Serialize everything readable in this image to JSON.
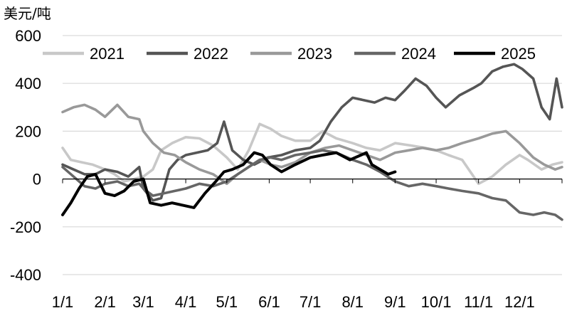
{
  "chart_data": {
    "type": "line",
    "unit_label": "美元/吨",
    "ylim": [
      -400,
      600
    ],
    "y_ticks": [
      600,
      400,
      200,
      0,
      -200,
      -400
    ],
    "x_tick_labels": [
      "1/1",
      "2/1",
      "3/1",
      "4/1",
      "5/1",
      "6/1",
      "7/1",
      "8/1",
      "9/1",
      "10/1",
      "11/1",
      "12/1"
    ],
    "x_domain_days": [
      0,
      365
    ],
    "legend_position": "top",
    "grid": "horizontal",
    "series": [
      {
        "name": "2021",
        "color": "#c8c8c8",
        "points": [
          [
            0,
            130
          ],
          [
            6,
            80
          ],
          [
            14,
            70
          ],
          [
            22,
            60
          ],
          [
            31,
            40
          ],
          [
            38,
            20
          ],
          [
            45,
            -10
          ],
          [
            52,
            0
          ],
          [
            59,
            10
          ],
          [
            66,
            40
          ],
          [
            72,
            120
          ],
          [
            80,
            150
          ],
          [
            90,
            175
          ],
          [
            100,
            170
          ],
          [
            110,
            140
          ],
          [
            120,
            90
          ],
          [
            128,
            40
          ],
          [
            136,
            120
          ],
          [
            144,
            230
          ],
          [
            152,
            210
          ],
          [
            160,
            180
          ],
          [
            170,
            160
          ],
          [
            181,
            160
          ],
          [
            190,
            200
          ],
          [
            200,
            170
          ],
          [
            212,
            150
          ],
          [
            222,
            130
          ],
          [
            232,
            120
          ],
          [
            243,
            150
          ],
          [
            255,
            140
          ],
          [
            265,
            130
          ],
          [
            273,
            120
          ],
          [
            282,
            100
          ],
          [
            292,
            80
          ],
          [
            304,
            -20
          ],
          [
            314,
            10
          ],
          [
            324,
            60
          ],
          [
            334,
            100
          ],
          [
            340,
            80
          ],
          [
            350,
            40
          ],
          [
            358,
            60
          ],
          [
            365,
            70
          ]
        ]
      },
      {
        "name": "2022",
        "color": "#555555",
        "points": [
          [
            0,
            60
          ],
          [
            8,
            40
          ],
          [
            16,
            20
          ],
          [
            24,
            20
          ],
          [
            31,
            40
          ],
          [
            40,
            30
          ],
          [
            48,
            10
          ],
          [
            56,
            50
          ],
          [
            59,
            -40
          ],
          [
            66,
            -90
          ],
          [
            72,
            -80
          ],
          [
            78,
            40
          ],
          [
            84,
            80
          ],
          [
            90,
            100
          ],
          [
            98,
            110
          ],
          [
            106,
            120
          ],
          [
            113,
            150
          ],
          [
            118,
            240
          ],
          [
            124,
            120
          ],
          [
            132,
            80
          ],
          [
            140,
            60
          ],
          [
            150,
            90
          ],
          [
            160,
            100
          ],
          [
            170,
            120
          ],
          [
            181,
            130
          ],
          [
            188,
            160
          ],
          [
            196,
            240
          ],
          [
            204,
            300
          ],
          [
            212,
            340
          ],
          [
            220,
            330
          ],
          [
            228,
            320
          ],
          [
            236,
            340
          ],
          [
            243,
            330
          ],
          [
            250,
            370
          ],
          [
            258,
            420
          ],
          [
            266,
            390
          ],
          [
            273,
            340
          ],
          [
            280,
            300
          ],
          [
            290,
            350
          ],
          [
            300,
            380
          ],
          [
            306,
            400
          ],
          [
            314,
            450
          ],
          [
            322,
            470
          ],
          [
            330,
            480
          ],
          [
            336,
            460
          ],
          [
            344,
            420
          ],
          [
            350,
            300
          ],
          [
            356,
            250
          ],
          [
            361,
            420
          ],
          [
            365,
            300
          ]
        ]
      },
      {
        "name": "2023",
        "color": "#999999",
        "points": [
          [
            0,
            280
          ],
          [
            8,
            300
          ],
          [
            16,
            310
          ],
          [
            24,
            290
          ],
          [
            31,
            260
          ],
          [
            40,
            310
          ],
          [
            48,
            260
          ],
          [
            56,
            250
          ],
          [
            59,
            200
          ],
          [
            66,
            150
          ],
          [
            74,
            110
          ],
          [
            82,
            100
          ],
          [
            90,
            70
          ],
          [
            100,
            40
          ],
          [
            110,
            20
          ],
          [
            120,
            -20
          ],
          [
            128,
            20
          ],
          [
            136,
            50
          ],
          [
            144,
            80
          ],
          [
            152,
            60
          ],
          [
            160,
            50
          ],
          [
            170,
            70
          ],
          [
            181,
            110
          ],
          [
            192,
            130
          ],
          [
            202,
            140
          ],
          [
            212,
            120
          ],
          [
            222,
            100
          ],
          [
            232,
            80
          ],
          [
            243,
            110
          ],
          [
            253,
            120
          ],
          [
            263,
            130
          ],
          [
            273,
            120
          ],
          [
            282,
            130
          ],
          [
            292,
            150
          ],
          [
            304,
            170
          ],
          [
            314,
            190
          ],
          [
            324,
            200
          ],
          [
            334,
            150
          ],
          [
            344,
            90
          ],
          [
            352,
            60
          ],
          [
            360,
            40
          ],
          [
            365,
            50
          ]
        ]
      },
      {
        "name": "2024",
        "color": "#666666",
        "points": [
          [
            0,
            50
          ],
          [
            8,
            10
          ],
          [
            16,
            -30
          ],
          [
            24,
            -40
          ],
          [
            31,
            -20
          ],
          [
            40,
            -10
          ],
          [
            48,
            -30
          ],
          [
            56,
            -20
          ],
          [
            59,
            -40
          ],
          [
            66,
            -70
          ],
          [
            74,
            -60
          ],
          [
            82,
            -50
          ],
          [
            90,
            -40
          ],
          [
            100,
            -20
          ],
          [
            110,
            -30
          ],
          [
            120,
            -10
          ],
          [
            128,
            20
          ],
          [
            136,
            50
          ],
          [
            144,
            80
          ],
          [
            152,
            90
          ],
          [
            160,
            80
          ],
          [
            170,
            100
          ],
          [
            181,
            110
          ],
          [
            190,
            120
          ],
          [
            200,
            110
          ],
          [
            212,
            80
          ],
          [
            222,
            60
          ],
          [
            232,
            30
          ],
          [
            243,
            -10
          ],
          [
            253,
            -30
          ],
          [
            263,
            -20
          ],
          [
            273,
            -30
          ],
          [
            282,
            -40
          ],
          [
            292,
            -50
          ],
          [
            304,
            -60
          ],
          [
            314,
            -80
          ],
          [
            324,
            -90
          ],
          [
            334,
            -140
          ],
          [
            344,
            -150
          ],
          [
            352,
            -140
          ],
          [
            360,
            -150
          ],
          [
            365,
            -170
          ]
        ]
      },
      {
        "name": "2025",
        "color": "#000000",
        "points": [
          [
            0,
            -150
          ],
          [
            6,
            -100
          ],
          [
            12,
            -40
          ],
          [
            18,
            10
          ],
          [
            24,
            20
          ],
          [
            31,
            -60
          ],
          [
            38,
            -70
          ],
          [
            45,
            -50
          ],
          [
            52,
            -10
          ],
          [
            59,
            0
          ],
          [
            64,
            -100
          ],
          [
            72,
            -110
          ],
          [
            80,
            -100
          ],
          [
            88,
            -110
          ],
          [
            96,
            -120
          ],
          [
            104,
            -60
          ],
          [
            112,
            -10
          ],
          [
            118,
            30
          ],
          [
            124,
            40
          ],
          [
            132,
            60
          ],
          [
            140,
            110
          ],
          [
            146,
            100
          ],
          [
            152,
            60
          ],
          [
            160,
            30
          ],
          [
            170,
            60
          ],
          [
            181,
            90
          ],
          [
            190,
            100
          ],
          [
            200,
            110
          ],
          [
            210,
            80
          ],
          [
            218,
            100
          ],
          [
            222,
            110
          ],
          [
            226,
            60
          ],
          [
            232,
            40
          ],
          [
            238,
            20
          ],
          [
            243,
            30
          ]
        ]
      }
    ]
  }
}
